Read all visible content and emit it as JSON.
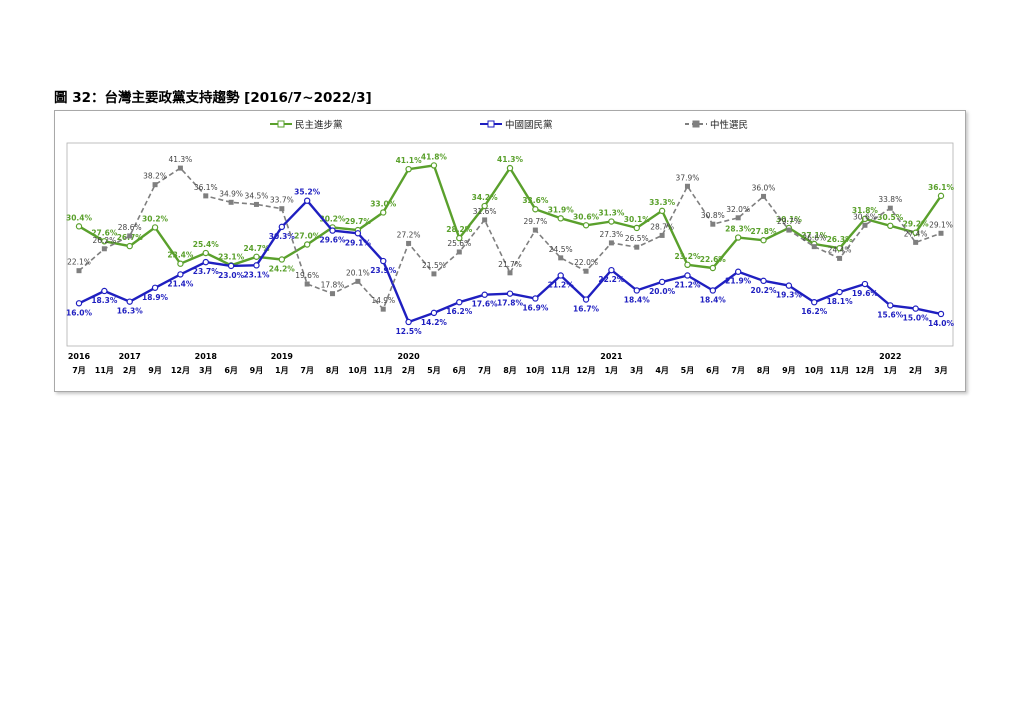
{
  "title": "圖 32：台灣主要政黨支持趨勢  [2016/7~2022/3]",
  "chart_data": {
    "type": "line",
    "months": [
      "7月",
      "11月",
      "2月",
      "9月",
      "12月",
      "3月",
      "6月",
      "9月",
      "1月",
      "7月",
      "8月",
      "10月",
      "11月",
      "2月",
      "5月",
      "6月",
      "7月",
      "8月",
      "10月",
      "11月",
      "12月",
      "1月",
      "3月",
      "4月",
      "5月",
      "6月",
      "7月",
      "8月",
      "9月",
      "10月",
      "11月",
      "12月",
      "1月",
      "2月",
      "3月"
    ],
    "years": [
      {
        "label": "2016",
        "index": 0
      },
      {
        "label": "2017",
        "index": 2
      },
      {
        "label": "2018",
        "index": 5
      },
      {
        "label": "2019",
        "index": 8
      },
      {
        "label": "2020",
        "index": 13
      },
      {
        "label": "2021",
        "index": 21
      },
      {
        "label": "2022",
        "index": 32
      }
    ],
    "ylim": [
      8,
      46
    ],
    "grid": false,
    "legend_position": "top",
    "series": [
      {
        "name": "民主進步黨",
        "color": "#5aa02c",
        "dash": false,
        "values": [
          30.4,
          27.6,
          26.7,
          30.2,
          23.4,
          25.4,
          23.1,
          24.7,
          24.2,
          27.0,
          30.2,
          29.7,
          33.0,
          41.1,
          41.8,
          28.2,
          34.2,
          41.3,
          33.6,
          31.9,
          30.6,
          31.3,
          30.1,
          33.3,
          23.2,
          22.6,
          28.3,
          27.8,
          30.1,
          27.1,
          26.3,
          31.8,
          30.5,
          29.2,
          36.1
        ]
      },
      {
        "name": "中國國民黨",
        "color": "#1f1fc0",
        "dash": false,
        "values": [
          16.0,
          18.3,
          16.3,
          18.9,
          21.4,
          23.7,
          23.0,
          23.1,
          30.3,
          35.2,
          29.6,
          29.1,
          23.9,
          12.5,
          14.2,
          16.2,
          17.6,
          17.8,
          16.9,
          21.2,
          16.7,
          22.2,
          18.4,
          20.0,
          21.2,
          18.4,
          21.9,
          20.2,
          19.3,
          16.2,
          18.1,
          19.6,
          15.6,
          15.0,
          14.0
        ]
      },
      {
        "name": "中性選民",
        "color": "#7f7f7f",
        "dash": true,
        "values": [
          22.1,
          26.2,
          28.6,
          38.2,
          41.3,
          36.1,
          34.9,
          34.5,
          33.7,
          19.6,
          17.8,
          20.1,
          14.9,
          27.2,
          21.5,
          25.6,
          31.6,
          21.7,
          29.7,
          24.5,
          22.0,
          27.3,
          26.5,
          28.7,
          37.9,
          30.8,
          32.0,
          36.0,
          29.7,
          26.6,
          24.4,
          30.6,
          33.8,
          27.4,
          29.1
        ]
      }
    ]
  }
}
